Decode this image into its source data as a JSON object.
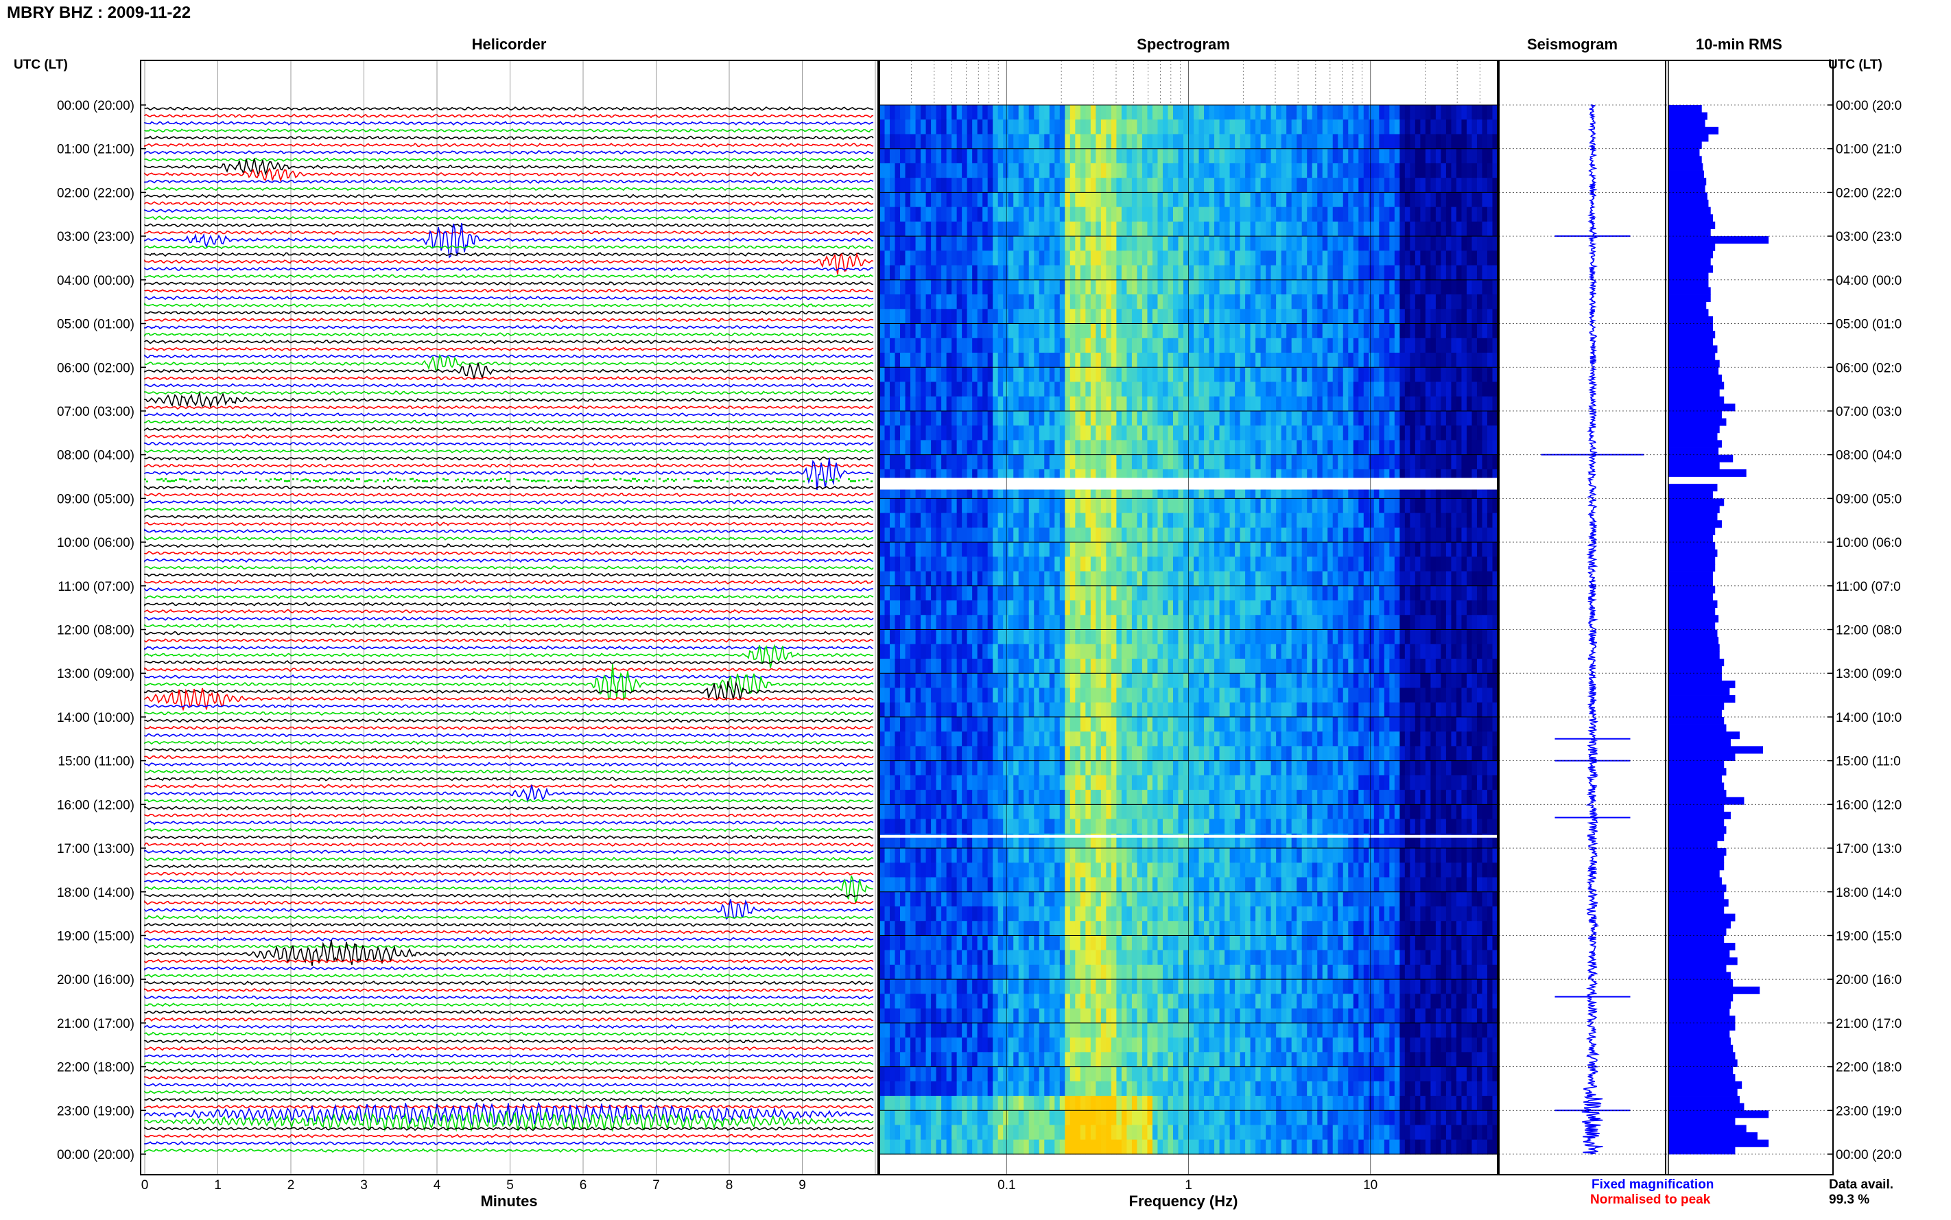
{
  "header": {
    "title": "MBRY BHZ : 2009-11-22"
  },
  "panels": {
    "helicorder": "Helicorder",
    "spectrogram": "Spectrogram",
    "seismogram": "Seismogram",
    "rms": "10-min RMS"
  },
  "axis": {
    "time_label_left": "UTC (LT)",
    "time_label_right": "UTC (LT)",
    "time_ticks_left": [
      "00:00 (20:00)",
      "01:00 (21:00)",
      "02:00 (22:00)",
      "03:00 (23:00)",
      "04:00 (00:00)",
      "05:00 (01:00)",
      "06:00 (02:00)",
      "07:00 (03:00)",
      "08:00 (04:00)",
      "09:00 (05:00)",
      "10:00 (06:00)",
      "11:00 (07:00)",
      "12:00 (08:00)",
      "13:00 (09:00)",
      "14:00 (10:00)",
      "15:00 (11:00)",
      "16:00 (12:00)",
      "17:00 (13:00)",
      "18:00 (14:00)",
      "19:00 (15:00)",
      "20:00 (16:00)",
      "21:00 (17:00)",
      "22:00 (18:00)",
      "23:00 (19:00)",
      "00:00 (20:00)"
    ],
    "time_ticks_right": [
      "00:00 (20:0",
      "01:00 (21:0",
      "02:00 (22:0",
      "03:00 (23:0",
      "04:00 (00:0",
      "05:00 (01:0",
      "06:00 (02:0",
      "07:00 (03:0",
      "08:00 (04:0",
      "09:00 (05:0",
      "10:00 (06:0",
      "11:00 (07:0",
      "12:00 (08:0",
      "13:00 (09:0",
      "14:00 (10:0",
      "15:00 (11:0",
      "16:00 (12:0",
      "17:00 (13:0",
      "18:00 (14:0",
      "19:00 (15:0",
      "20:00 (16:0",
      "21:00 (17:0",
      "22:00 (18:0",
      "23:00 (19:0",
      "00:00 (20:0"
    ],
    "minutes_label": "Minutes",
    "minutes_ticks": [
      "0",
      "1",
      "2",
      "3",
      "4",
      "5",
      "6",
      "7",
      "8",
      "9"
    ],
    "frequency_label": "Frequency (Hz)",
    "frequency_ticks": [
      "0.1",
      "1",
      "10"
    ]
  },
  "legend": {
    "fixed": "Fixed magnification",
    "normalised": "Normalised to peak",
    "fixed_color": "#0000ff",
    "normalised_color": "#ff0000"
  },
  "availability": {
    "label": "Data avail.",
    "value": "99.3 %"
  },
  "colors": {
    "trace_cycle": [
      "#000000",
      "#ff0000",
      "#0000ff",
      "#00dd00"
    ],
    "rms_bar": "#0000ff",
    "gap": "#ffffff"
  },
  "chart_data": {
    "type": "heatmap",
    "helicorder": {
      "lines_per_hour": 6,
      "minutes_per_line": 10,
      "xlim": [
        0,
        10
      ],
      "events": [
        {
          "line": 8,
          "start": 1.0,
          "end": 2.0,
          "amp": 0.4
        },
        {
          "line": 9,
          "start": 1.3,
          "end": 2.2,
          "amp": 0.3
        },
        {
          "line": 18,
          "start": 3.8,
          "end": 4.6,
          "amp": 1.0
        },
        {
          "line": 18,
          "start": 0.5,
          "end": 1.2,
          "amp": 0.3
        },
        {
          "line": 21,
          "start": 9.2,
          "end": 9.9,
          "amp": 0.6
        },
        {
          "line": 35,
          "start": 3.8,
          "end": 4.4,
          "amp": 0.4
        },
        {
          "line": 36,
          "start": 4.2,
          "end": 4.8,
          "amp": 0.4
        },
        {
          "line": 40,
          "start": 0.0,
          "end": 1.5,
          "amp": 0.3
        },
        {
          "line": 50,
          "start": 9.0,
          "end": 9.6,
          "amp": 0.9
        },
        {
          "line": 79,
          "start": 6.1,
          "end": 6.8,
          "amp": 0.9
        },
        {
          "line": 80,
          "start": 7.6,
          "end": 8.3,
          "amp": 0.6
        },
        {
          "line": 79,
          "start": 7.8,
          "end": 8.6,
          "amp": 0.6
        },
        {
          "line": 81,
          "start": 0.0,
          "end": 1.4,
          "amp": 0.5
        },
        {
          "line": 116,
          "start": 1.4,
          "end": 3.8,
          "amp": 0.6
        },
        {
          "line": 107,
          "start": 9.5,
          "end": 9.9,
          "amp": 0.7
        },
        {
          "line": 110,
          "start": 7.8,
          "end": 8.4,
          "amp": 0.5
        },
        {
          "line": 75,
          "start": 8.2,
          "end": 8.9,
          "amp": 0.6
        },
        {
          "line": 94,
          "start": 5.0,
          "end": 5.6,
          "amp": 0.4
        },
        {
          "line": 138,
          "start": 0.0,
          "end": 9.9,
          "amp": 0.5
        },
        {
          "line": 139,
          "start": 0.0,
          "end": 9.9,
          "amp": 0.4
        }
      ],
      "gap_line": 51
    },
    "spectrogram": {
      "xlim_hz": [
        0.02,
        50
      ],
      "x_scale": "log",
      "gap_rows": [
        51,
        100
      ]
    },
    "seismogram": {
      "spikes_hour": [
        3.0,
        8.0,
        14.5,
        15.0,
        16.3,
        20.4,
        23.0
      ]
    },
    "rms": {
      "unit": "relative",
      "values": [
        0.3,
        0.35,
        0.33,
        0.45,
        0.36,
        0.3,
        0.28,
        0.3,
        0.31,
        0.32,
        0.34,
        0.33,
        0.35,
        0.36,
        0.38,
        0.4,
        0.42,
        0.38,
        0.9,
        0.42,
        0.4,
        0.38,
        0.4,
        0.36,
        0.36,
        0.38,
        0.38,
        0.34,
        0.36,
        0.4,
        0.4,
        0.42,
        0.4,
        0.44,
        0.42,
        0.46,
        0.45,
        0.48,
        0.5,
        0.46,
        0.5,
        0.6,
        0.48,
        0.52,
        0.46,
        0.44,
        0.48,
        0.45,
        0.58,
        0.46,
        0.7,
        0.0,
        0.44,
        0.4,
        0.5,
        0.46,
        0.44,
        0.48,
        0.42,
        0.4,
        0.42,
        0.44,
        0.42,
        0.42,
        0.4,
        0.4,
        0.42,
        0.4,
        0.44,
        0.42,
        0.45,
        0.42,
        0.44,
        0.45,
        0.46,
        0.46,
        0.5,
        0.48,
        0.48,
        0.6,
        0.55,
        0.6,
        0.5,
        0.48,
        0.5,
        0.52,
        0.64,
        0.56,
        0.85,
        0.6,
        0.5,
        0.52,
        0.48,
        0.5,
        0.52,
        0.68,
        0.5,
        0.56,
        0.5,
        0.52,
        0.5,
        0.44,
        0.52,
        0.5,
        0.5,
        0.46,
        0.48,
        0.52,
        0.5,
        0.54,
        0.5,
        0.6,
        0.56,
        0.52,
        0.5,
        0.6,
        0.55,
        0.62,
        0.52,
        0.56,
        0.58,
        0.82,
        0.58,
        0.56,
        0.55,
        0.6,
        0.6,
        0.55,
        0.56,
        0.58,
        0.6,
        0.62,
        0.58,
        0.6,
        0.66,
        0.62,
        0.64,
        0.68,
        0.9,
        0.6,
        0.7,
        0.8,
        0.9,
        0.6
      ]
    }
  }
}
